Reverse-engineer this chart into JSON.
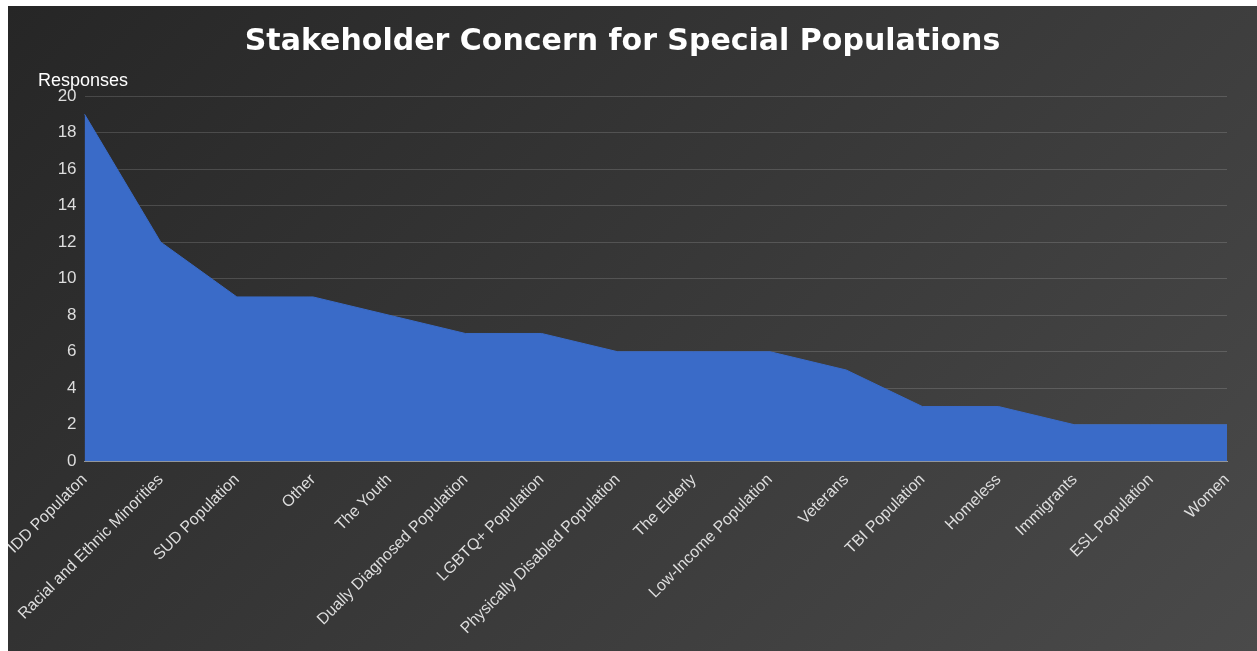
{
  "chart_data": {
    "type": "area",
    "title": "Stakeholder Concern for Special Populations",
    "ylabel": "Responses",
    "categories": [
      "IDD Populaton",
      "Racial and Ethnic Minorities",
      "SUD Population",
      "Other",
      "The Youth",
      "Dually Diagnosed Population",
      "LGBTQ+ Population",
      "Physically Disabled Population",
      "The Elderly",
      "Low-Income Population",
      "Veterans",
      "TBI Population",
      "Homeless",
      "Immigrants",
      "ESL Population",
      "Women"
    ],
    "values": [
      19,
      12,
      9,
      9,
      8,
      7,
      7,
      6,
      6,
      6,
      5,
      3,
      3,
      2,
      2,
      2
    ],
    "color": "#3a6bc8",
    "ylim": [
      0,
      20
    ],
    "yticks": [
      0,
      2,
      4,
      6,
      8,
      10,
      12,
      14,
      16,
      18,
      20
    ],
    "grid": "y",
    "legend": false
  }
}
